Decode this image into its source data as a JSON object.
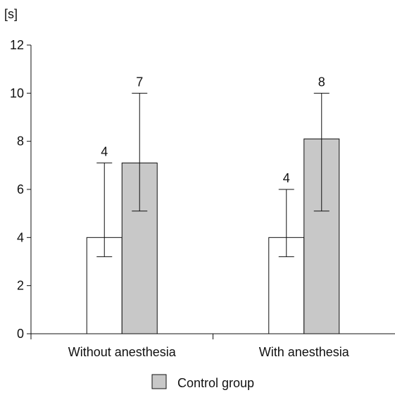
{
  "chart_data": {
    "type": "bar",
    "unit_label": "[s]",
    "categories": [
      "Without anesthesia",
      "With anesthesia"
    ],
    "series": [
      {
        "values": [
          4,
          4
        ],
        "error_low": [
          3.2,
          3.2
        ],
        "error_high": [
          7.1,
          6.0
        ],
        "labels": [
          "4",
          "4"
        ],
        "color": "#ffffff"
      },
      {
        "name": "Control group",
        "values": [
          7.1,
          8.1
        ],
        "error_low": [
          5.1,
          5.1
        ],
        "error_high": [
          10.0,
          10.0
        ],
        "labels": [
          "7",
          "8"
        ],
        "color": "#c8c8c8"
      }
    ],
    "ylim": [
      0,
      12
    ],
    "yticks": [
      0,
      2,
      4,
      6,
      8,
      10,
      12
    ],
    "grid": false,
    "legend_position": "bottom-center"
  }
}
